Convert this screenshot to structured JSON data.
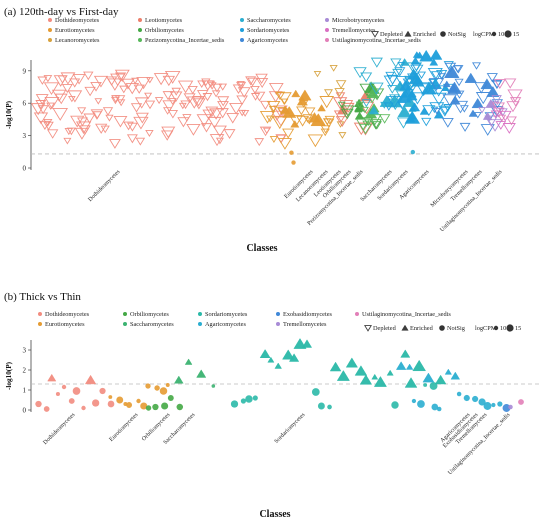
{
  "chart_data": [
    {
      "type": "scatter",
      "title": "(a) 120th-day vs First-day",
      "xlabel": "Classes",
      "ylabel": "-log10(P)",
      "ylim": [
        0,
        10
      ],
      "yticks": [
        0,
        3,
        6,
        9
      ],
      "threshold": 1.3,
      "legend_classes": [
        {
          "name": "Dothideomycetes",
          "color": "#F28C7F"
        },
        {
          "name": "Leotiomycetes",
          "color": "#EC7E6A"
        },
        {
          "name": "Saccharomycetes",
          "color": "#2BAED0"
        },
        {
          "name": "Microbotryomycetes",
          "color": "#A88BD6"
        },
        {
          "name": "Eurotiomycetes",
          "color": "#E59B32"
        },
        {
          "name": "Orbiliomycetes",
          "color": "#44A845"
        },
        {
          "name": "Sordariomycetes",
          "color": "#1E9FDB"
        },
        {
          "name": "Tremellomycetes",
          "color": "#D96FC2"
        },
        {
          "name": "Lecanoromycetes",
          "color": "#D7A23E"
        },
        {
          "name": "Pezizomycotina_Incertae_sedis",
          "color": "#57B85A"
        },
        {
          "name": "Agaricomycetes",
          "color": "#3F88D8"
        },
        {
          "name": "Ustilaginomycotina_Incertae_sedis",
          "color": "#E27FB8"
        }
      ],
      "legend_markers": [
        "Depleted",
        "Enriched",
        "NotSig"
      ],
      "size_label": "logCPM",
      "size_values": [
        "10",
        "15"
      ],
      "x_classes": [
        "Dothideomycetes",
        "Eurotiomycetes",
        "Lecanoromycetes",
        "Leotiomycetes",
        "Orbiliomycetes",
        "Pezizomycotina_Incertae_sedis",
        "Saccharomycetes",
        "Sordariomycetes",
        "Agaricomycetes",
        "Microbotryomycetes",
        "Tremellomycetes",
        "Ustilaginomycotina_Incertae_sedis"
      ],
      "groups": [
        {
          "cls": "Dothideomycetes",
          "color": "#F28C7F",
          "n": 150,
          "ymin": 2.2,
          "ymax": 8.6,
          "enriched": 0,
          "notsig": 0
        },
        {
          "cls": "Eurotiomycetes",
          "color": "#E59B32",
          "n": 26,
          "ymin": 1.6,
          "ymax": 7.0,
          "enriched": 9,
          "notsig": 2
        },
        {
          "cls": "Lecanoromycetes",
          "color": "#D7A23E",
          "n": 7,
          "ymin": 3.0,
          "ymax": 9.8,
          "enriched": 0,
          "notsig": 0
        },
        {
          "cls": "Leotiomycetes",
          "color": "#EC7E6A",
          "n": 9,
          "ymin": 3.5,
          "ymax": 7.5,
          "enriched": 2,
          "notsig": 0
        },
        {
          "cls": "Orbiliomycetes",
          "color": "#44A845",
          "n": 8,
          "ymin": 3.0,
          "ymax": 7.5,
          "enriched": 5,
          "notsig": 0
        },
        {
          "cls": "Pezizomycotina_Incertae_sedis",
          "color": "#57B85A",
          "n": 8,
          "ymin": 3.5,
          "ymax": 7.5,
          "enriched": 4,
          "notsig": 0
        },
        {
          "cls": "Saccharomycetes",
          "color": "#2BAED0",
          "n": 16,
          "ymin": 3.5,
          "ymax": 10.0,
          "enriched": 9,
          "notsig": 1
        },
        {
          "cls": "Sordariomycetes",
          "color": "#1E9FDB",
          "n": 34,
          "ymin": 3.5,
          "ymax": 10.5,
          "enriched": 22,
          "notsig": 0
        },
        {
          "cls": "Agaricomycetes",
          "color": "#3F88D8",
          "n": 24,
          "ymin": 3.5,
          "ymax": 9.5,
          "enriched": 10,
          "notsig": 0
        },
        {
          "cls": "Microbotryomycetes",
          "color": "#A88BD6",
          "n": 6,
          "ymin": 3.5,
          "ymax": 7.0,
          "enriched": 2,
          "notsig": 0
        },
        {
          "cls": "Tremellomycetes",
          "color": "#D96FC2",
          "n": 5,
          "ymin": 2.0,
          "ymax": 6.5,
          "enriched": 0,
          "notsig": 0
        },
        {
          "cls": "Ustilaginomycotina_Incertae_sedis",
          "color": "#E27FB8",
          "n": 8,
          "ymin": 3.0,
          "ymax": 8.0,
          "enriched": 0,
          "notsig": 0
        }
      ]
    },
    {
      "type": "scatter",
      "title": "(b) Thick vs Thin",
      "xlabel": "Classes",
      "ylabel": "-log10(P)",
      "ylim": [
        0,
        3.5
      ],
      "yticks": [
        0,
        1,
        2,
        3
      ],
      "threshold": 1.3,
      "legend_classes": [
        {
          "name": "Dothideomycetes",
          "color": "#F28C7F"
        },
        {
          "name": "Orbiliomycetes",
          "color": "#44A845"
        },
        {
          "name": "Sordariomycetes",
          "color": "#2BB9A8"
        },
        {
          "name": "Exobasidiomycetes",
          "color": "#3F88D8"
        },
        {
          "name": "Ustilaginomycotina_Incertae_sedis",
          "color": "#E27FB8"
        },
        {
          "name": "Eurotiomycetes",
          "color": "#E59B32"
        },
        {
          "name": "Saccharomycetes",
          "color": "#3CB371"
        },
        {
          "name": "Agaricomycetes",
          "color": "#2BAED0"
        },
        {
          "name": "Tremellomycetes",
          "color": "#A88BD6"
        }
      ],
      "legend_markers": [
        "Depleted",
        "Enriched",
        "NotSig"
      ],
      "size_label": "logCPM",
      "size_values": [
        "10",
        "15"
      ],
      "x_classes": [
        "Dothideomycetes",
        "Eurotiomycetes",
        "Orbiliomycetes",
        "Saccharomycetes",
        "Sordariomycetes",
        "Agaricomycetes",
        "Exobasidiomycetes",
        "Tremellomycetes",
        "Ustilaginomycotina_Incertae_sedis"
      ],
      "groups": [
        {
          "cls": "Dothideomycetes",
          "color": "#F28C7F",
          "points": [
            [
              0.3,
              "n"
            ],
            [
              0.05,
              "n"
            ],
            [
              1.6,
              "e"
            ],
            [
              0.8,
              "n"
            ],
            [
              1.15,
              "n"
            ],
            [
              0.45,
              "n"
            ],
            [
              0.95,
              "n"
            ],
            [
              0.1,
              "n"
            ],
            [
              1.5,
              "e"
            ],
            [
              0.35,
              "n"
            ],
            [
              0.95,
              "n"
            ],
            [
              0.3,
              "n"
            ]
          ]
        },
        {
          "cls": "Eurotiomycetes",
          "color": "#E59B32",
          "points": [
            [
              0.65,
              "n"
            ],
            [
              0.5,
              "n"
            ],
            [
              0.3,
              "n"
            ],
            [
              0.25,
              "n"
            ],
            [
              0.45,
              "n"
            ],
            [
              0.2,
              "n"
            ],
            [
              1.2,
              "n"
            ],
            [
              1.1,
              "n"
            ],
            [
              0.95,
              "n"
            ],
            [
              1.25,
              "n"
            ]
          ]
        },
        {
          "cls": "Orbiliomycetes",
          "color": "#44A845",
          "points": [
            [
              0.1,
              "n"
            ],
            [
              0.15,
              "n"
            ],
            [
              0.2,
              "n"
            ],
            [
              0.6,
              "n"
            ],
            [
              0.15,
              "n"
            ]
          ]
        },
        {
          "cls": "Saccharomycetes",
          "color": "#3CB371",
          "points": [
            [
              1.5,
              "e"
            ],
            [
              2.4,
              "e"
            ],
            [
              1.8,
              "e"
            ],
            [
              1.2,
              "n"
            ]
          ]
        },
        {
          "cls": "Sordariomycetes",
          "color": "#2BB9A8",
          "points": [
            [
              0.3,
              "n"
            ],
            [
              0.45,
              "n"
            ],
            [
              0.55,
              "n"
            ],
            [
              0.6,
              "n"
            ],
            [
              2.8,
              "e"
            ],
            [
              2.5,
              "e"
            ],
            [
              2.2,
              "e"
            ],
            [
              2.75,
              "e"
            ],
            [
              2.6,
              "e"
            ],
            [
              3.3,
              "e"
            ],
            [
              3.3,
              "e"
            ],
            [
              0.9,
              "n"
            ],
            [
              0.2,
              "n"
            ],
            [
              0.15,
              "n"
            ],
            [
              2.15,
              "e"
            ],
            [
              1.7,
              "e"
            ],
            [
              2.35,
              "e"
            ],
            [
              1.95,
              "e"
            ],
            [
              1.5,
              "e"
            ],
            [
              1.65,
              "e"
            ],
            [
              1.4,
              "e"
            ],
            [
              1.85,
              "e"
            ],
            [
              0.25,
              "n"
            ],
            [
              2.8,
              "e"
            ],
            [
              1.35,
              "e"
            ],
            [
              2.2,
              "e"
            ],
            [
              1.25,
              "n"
            ],
            [
              1.2,
              "n"
            ],
            [
              1.5,
              "e"
            ]
          ]
        },
        {
          "cls": "Agaricomycetes",
          "color": "#2BAED0",
          "points": [
            [
              2.2,
              "e"
            ],
            [
              2.15,
              "e"
            ],
            [
              0.45,
              "n"
            ],
            [
              0.3,
              "n"
            ],
            [
              1.6,
              "e"
            ],
            [
              0.15,
              "n"
            ],
            [
              0.05,
              "n"
            ],
            [
              1.9,
              "e"
            ],
            [
              1.7,
              "e"
            ],
            [
              0.8,
              "n"
            ],
            [
              0.6,
              "n"
            ],
            [
              0.55,
              "n"
            ],
            [
              0.4,
              "n"
            ],
            [
              0.2,
              "n"
            ],
            [
              0.25,
              "n"
            ],
            [
              0.3,
              "n"
            ]
          ]
        },
        {
          "cls": "Exobasidiomycetes",
          "color": "#3F88D8",
          "points": [
            [
              0.1,
              "n"
            ]
          ]
        },
        {
          "cls": "Tremellomycetes",
          "color": "#A88BD6",
          "points": [
            [
              0.15,
              "n"
            ]
          ]
        },
        {
          "cls": "Ustilaginomycotina_Incertae_sedis",
          "color": "#E27FB8",
          "points": [
            [
              0.4,
              "n"
            ]
          ]
        }
      ]
    }
  ]
}
